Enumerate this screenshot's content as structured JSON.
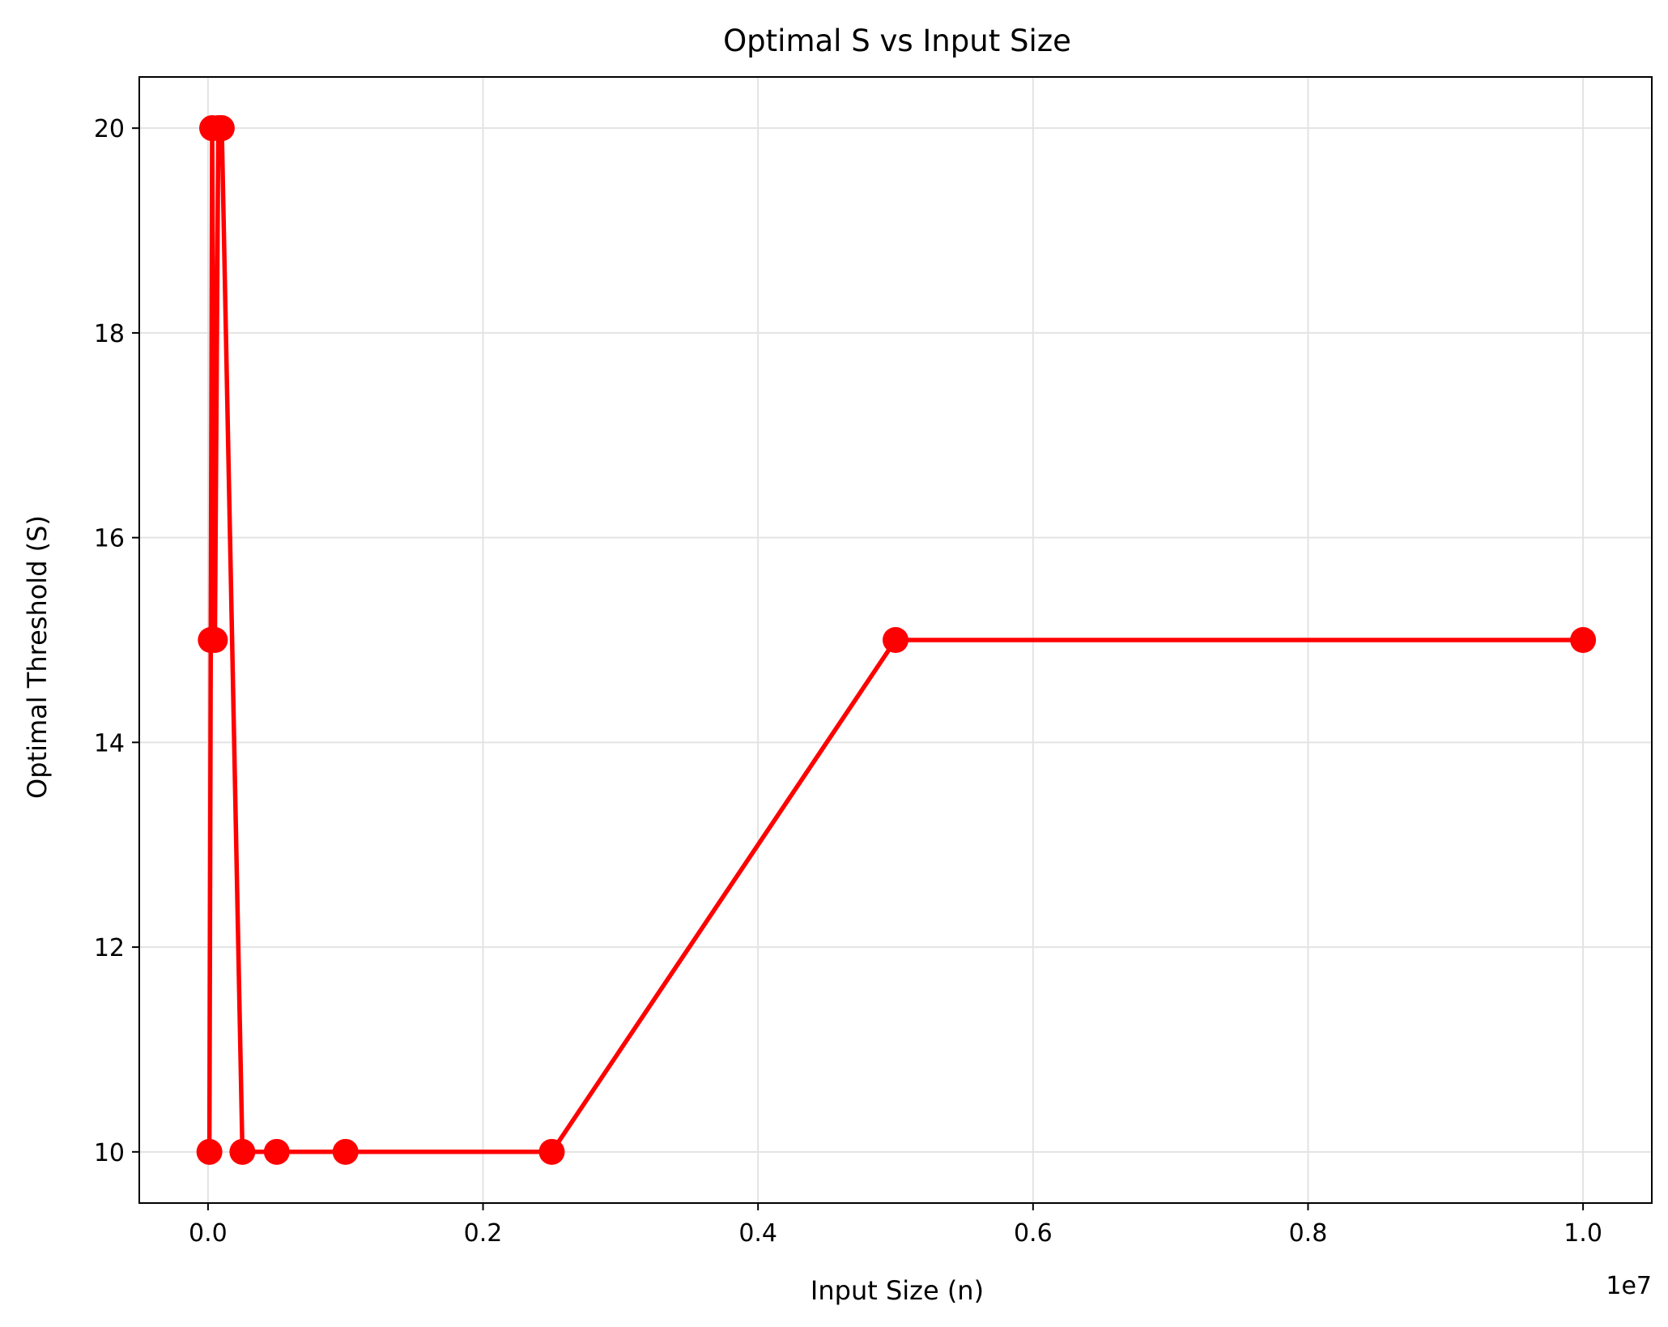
{
  "chart_data": {
    "type": "line",
    "title": "Optimal S vs Input Size",
    "xlabel": "Input Size (n)",
    "ylabel": "Optimal Threshold (S)",
    "x_offset_label": "1e7",
    "xlim": [
      -0.05,
      1.05
    ],
    "ylim": [
      9.5,
      20.5
    ],
    "x_ticks": [
      0.0,
      0.2,
      0.4,
      0.6,
      0.8,
      1.0
    ],
    "x_tick_labels": [
      "0.0",
      "0.2",
      "0.4",
      "0.6",
      "0.8",
      "1.0"
    ],
    "y_ticks": [
      10,
      12,
      14,
      16,
      18,
      20
    ],
    "y_tick_labels": [
      "10",
      "12",
      "14",
      "16",
      "18",
      "20"
    ],
    "grid": true,
    "series": [
      {
        "color": "#ff0000",
        "marker": "circle",
        "x": [
          0.001,
          0.002,
          0.003,
          0.005,
          0.0075,
          0.01,
          0.025,
          0.05,
          0.1,
          0.25,
          0.5,
          1.0
        ],
        "y": [
          10,
          15,
          20,
          15,
          20,
          20,
          10,
          10,
          10,
          10,
          15,
          15
        ]
      }
    ]
  }
}
